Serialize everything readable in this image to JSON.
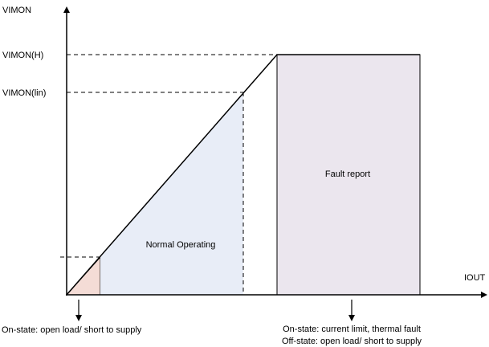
{
  "axes": {
    "y_label": "VIMON",
    "x_label": "IOUT"
  },
  "levels": {
    "high": "VIMON(H)",
    "linear": "VIMON(lin)"
  },
  "regions": {
    "normal": "Normal Operating",
    "fault": "Fault report"
  },
  "notes": {
    "left": "On-state: open load/ short to supply",
    "right": [
      "On-state: current limit, thermal fault",
      "Off-state: open load/ short to supply"
    ]
  }
}
